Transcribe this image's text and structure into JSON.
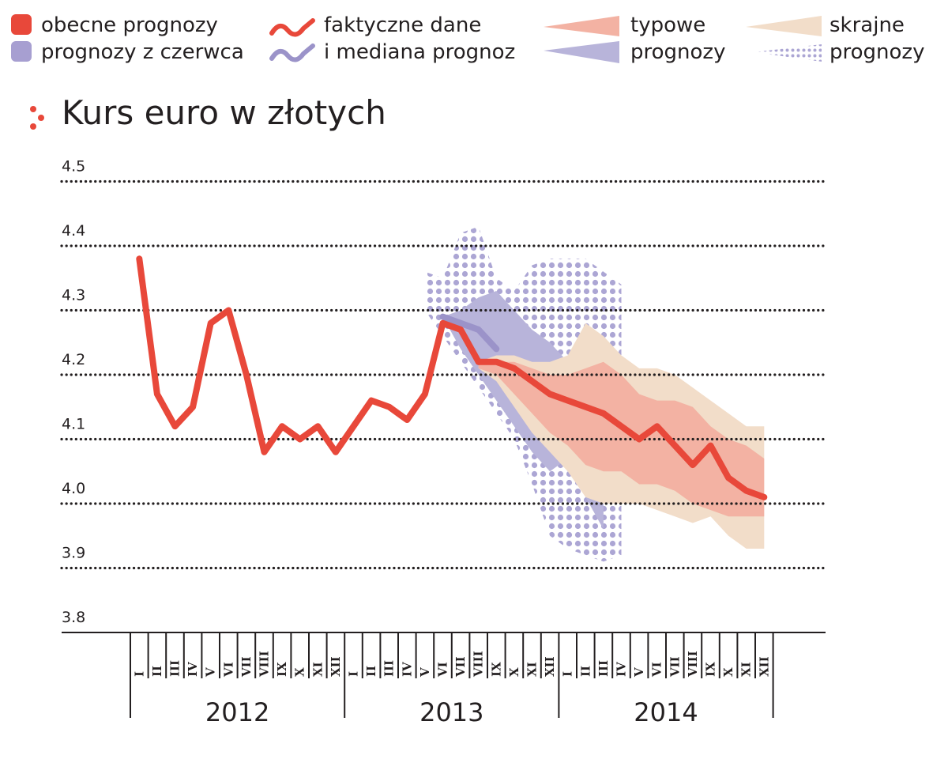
{
  "legend": {
    "current": "obecne prognozy",
    "june": "prognozy z czerwca",
    "actual_line1": "faktyczne dane",
    "actual_line2": "i mediana prognoz",
    "typical_line1": "typowe",
    "typical_line2": "prognozy",
    "extreme_line1": "skrajne",
    "extreme_line2": "prognozy"
  },
  "colors": {
    "actual": "#e8483a",
    "current_typical": "#f3b2a3",
    "current_extreme": "#f2ddc9",
    "june": "#b8b4da",
    "june_median": "#9b93c9",
    "june_dots": "#aca6d4"
  },
  "chart_data": {
    "type": "line",
    "title": "Kurs euro w złotych",
    "xlabel": "",
    "ylabel": "",
    "ylim": [
      3.8,
      4.5
    ],
    "yticks": [
      "4.5",
      "4.4",
      "4.3",
      "4.2",
      "4.1",
      "4.0",
      "3.9",
      "3.8"
    ],
    "months": [
      "I",
      "II",
      "III",
      "IV",
      "V",
      "VI",
      "VII",
      "VIII",
      "IX",
      "X",
      "XI",
      "XII"
    ],
    "years": [
      "2012",
      "2013",
      "2014"
    ],
    "grid": true,
    "series": [
      {
        "key": "actual",
        "x": [
          1,
          2,
          3,
          4,
          5,
          6,
          7,
          8,
          9,
          10,
          11,
          12,
          13,
          14,
          15,
          16,
          17,
          18,
          19,
          20
        ],
        "values": [
          4.38,
          4.17,
          4.12,
          4.15,
          4.28,
          4.3,
          4.2,
          4.08,
          4.12,
          4.1,
          4.12,
          4.08,
          4.12,
          4.16,
          4.15,
          4.13,
          4.17,
          4.28,
          4.27,
          4.22
        ]
      },
      {
        "key": "current_median",
        "x": [
          20,
          21,
          22,
          23,
          24,
          25,
          26,
          27,
          28,
          29,
          30,
          31,
          32,
          33,
          34,
          35,
          36
        ],
        "values": [
          4.22,
          4.22,
          4.21,
          4.19,
          4.17,
          4.16,
          4.15,
          4.14,
          4.12,
          4.1,
          4.12,
          4.09,
          4.06,
          4.09,
          4.04,
          4.02,
          4.01
        ]
      },
      {
        "key": "june_median",
        "x": [
          18,
          19,
          20,
          21
        ],
        "values": [
          4.29,
          4.28,
          4.27,
          4.24
        ]
      },
      {
        "key": "current_typical",
        "x": [
          20,
          21,
          22,
          23,
          24,
          25,
          26,
          27,
          28,
          29,
          30,
          31,
          32,
          33,
          34,
          35,
          36
        ],
        "low": [
          4.21,
          4.2,
          4.17,
          4.14,
          4.11,
          4.09,
          4.06,
          4.05,
          4.05,
          4.03,
          4.03,
          4.02,
          4.0,
          3.99,
          3.98,
          3.98,
          3.98
        ],
        "high": [
          4.22,
          4.22,
          4.22,
          4.21,
          4.2,
          4.2,
          4.21,
          4.22,
          4.2,
          4.17,
          4.16,
          4.16,
          4.15,
          4.12,
          4.1,
          4.09,
          4.07
        ]
      },
      {
        "key": "current_extreme",
        "x": [
          20,
          21,
          22,
          23,
          24,
          25,
          26,
          27,
          28,
          29,
          30,
          31,
          32,
          33,
          34,
          35,
          36
        ],
        "low": [
          4.21,
          4.19,
          4.15,
          4.11,
          4.08,
          4.05,
          4.01,
          4.0,
          4.0,
          4.0,
          3.99,
          3.98,
          3.97,
          3.98,
          3.95,
          3.93,
          3.93
        ],
        "high": [
          4.22,
          4.23,
          4.23,
          4.22,
          4.22,
          4.23,
          4.28,
          4.26,
          4.23,
          4.21,
          4.21,
          4.2,
          4.18,
          4.16,
          4.14,
          4.12,
          4.12
        ]
      },
      {
        "key": "june_typical",
        "x": [
          18,
          19,
          20,
          21,
          22,
          23,
          24,
          25,
          26,
          27
        ],
        "low": [
          4.29,
          4.24,
          4.2,
          4.16,
          4.12,
          4.08,
          4.05,
          4.07,
          4.01,
          3.96
        ],
        "high": [
          4.29,
          4.3,
          4.32,
          4.33,
          4.3,
          4.27,
          4.25,
          4.22,
          4.19,
          4.16
        ]
      },
      {
        "key": "june_extreme",
        "x": [
          17,
          18,
          19,
          20,
          21,
          22,
          23,
          24,
          25,
          26,
          27,
          28
        ],
        "low": [
          4.3,
          4.26,
          4.22,
          4.18,
          4.14,
          4.1,
          4.03,
          3.95,
          3.93,
          3.92,
          3.91,
          3.92
        ],
        "high": [
          4.36,
          4.35,
          4.42,
          4.43,
          4.35,
          4.33,
          4.37,
          4.38,
          4.38,
          4.38,
          4.36,
          4.34
        ]
      }
    ]
  }
}
